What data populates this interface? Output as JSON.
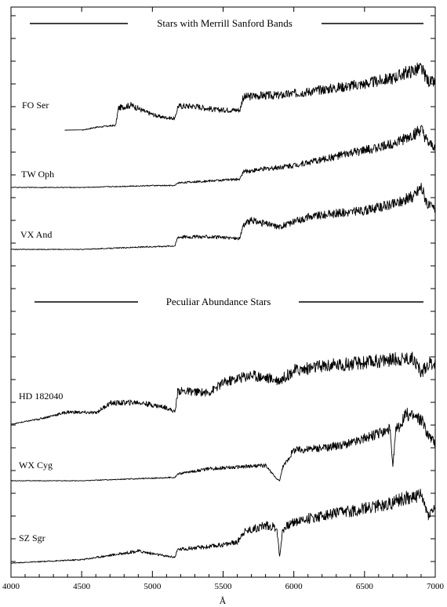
{
  "chart_data": {
    "type": "line",
    "title": "",
    "xlabel": "Å",
    "ylabel": "",
    "xlim": [
      4000,
      7000
    ],
    "x_ticks": [
      4000,
      4500,
      5000,
      5500,
      6000,
      6500,
      7000
    ],
    "grid": false,
    "legend": "none",
    "group_headers": [
      {
        "text": "Stars with Merrill Sanford Bands",
        "series": [
          "FO Ser",
          "TW Oph",
          "VX And"
        ]
      },
      {
        "text": "Peculiar Abundance Stars",
        "series": [
          "HD 182040",
          "WX Cyg",
          "SZ Sgr"
        ]
      }
    ],
    "series": [
      {
        "name": "FO Ser",
        "start": 4500,
        "x": [
          4500,
          4600,
          4740,
          4760,
          4850,
          4950,
          5050,
          5160,
          5180,
          5300,
          5450,
          5620,
          5640,
          5750,
          5900,
          6100,
          6300,
          6500,
          6700,
          6800,
          6900,
          6950,
          7000
        ],
        "y": [
          0.0,
          0.3,
          0.5,
          2.3,
          2.6,
          1.9,
          1.4,
          1.2,
          2.5,
          2.5,
          2.1,
          2.1,
          3.4,
          3.6,
          3.6,
          4.0,
          4.4,
          4.8,
          5.4,
          6.0,
          6.4,
          5.1,
          4.9
        ]
      },
      {
        "name": "TW Oph",
        "start": 4000,
        "x": [
          4000,
          4500,
          5000,
          5160,
          5180,
          5400,
          5620,
          5640,
          5800,
          6000,
          6200,
          6400,
          6600,
          6800,
          6900,
          6950,
          7000
        ],
        "y": [
          0.0,
          0.0,
          0.2,
          0.2,
          0.5,
          0.7,
          0.9,
          1.7,
          2.0,
          2.4,
          3.0,
          3.7,
          4.3,
          5.3,
          6.2,
          4.7,
          4.3
        ]
      },
      {
        "name": "VX And",
        "start": 4000,
        "x": [
          4000,
          4500,
          5000,
          5160,
          5180,
          5400,
          5620,
          5640,
          5700,
          5900,
          6100,
          6300,
          6500,
          6700,
          6850,
          6900,
          6950,
          7000
        ],
        "y": [
          0.0,
          0.0,
          0.3,
          0.4,
          1.4,
          1.4,
          1.2,
          2.7,
          3.2,
          2.5,
          3.6,
          4.0,
          4.3,
          5.0,
          5.9,
          7.0,
          4.9,
          4.5
        ]
      },
      {
        "name": "HD 182040",
        "start": 4000,
        "x": [
          4000,
          4200,
          4400,
          4600,
          4700,
          4900,
          5100,
          5160,
          5180,
          5400,
          5500,
          5620,
          5700,
          5900,
          6000,
          6200,
          6500,
          6700,
          6850,
          6900,
          6950,
          7000
        ],
        "y": [
          0.0,
          0.6,
          1.4,
          1.3,
          2.4,
          2.5,
          1.9,
          1.4,
          3.8,
          3.6,
          4.7,
          5.3,
          5.6,
          5.0,
          6.1,
          6.6,
          7.0,
          7.4,
          7.5,
          5.8,
          6.9,
          7.0
        ]
      },
      {
        "name": "WX Cyg",
        "start": 4000,
        "x": [
          4000,
          4500,
          5000,
          5160,
          5180,
          5400,
          5600,
          5800,
          5880,
          5900,
          5920,
          6000,
          6200,
          6400,
          6600,
          6680,
          6700,
          6720,
          6800,
          6900,
          6950,
          7000
        ],
        "y": [
          0.0,
          0.0,
          0.3,
          0.4,
          0.8,
          1.4,
          1.6,
          1.8,
          0.2,
          0.0,
          1.5,
          3.6,
          3.8,
          4.4,
          5.5,
          6.0,
          1.5,
          5.8,
          7.8,
          7.2,
          5.4,
          4.4
        ]
      },
      {
        "name": "SZ Sgr",
        "start": 4000,
        "x": [
          4000,
          4500,
          4900,
          5100,
          5160,
          5180,
          5400,
          5600,
          5620,
          5640,
          5800,
          5880,
          5900,
          5920,
          6000,
          6200,
          6500,
          6700,
          6800,
          6900,
          6950,
          7000
        ],
        "y": [
          0.0,
          0.4,
          1.4,
          0.8,
          0.7,
          1.6,
          1.9,
          2.4,
          3.0,
          3.6,
          4.4,
          4.1,
          0.6,
          3.9,
          4.8,
          5.5,
          6.3,
          7.0,
          7.6,
          7.8,
          5.6,
          6.4
        ]
      }
    ]
  }
}
